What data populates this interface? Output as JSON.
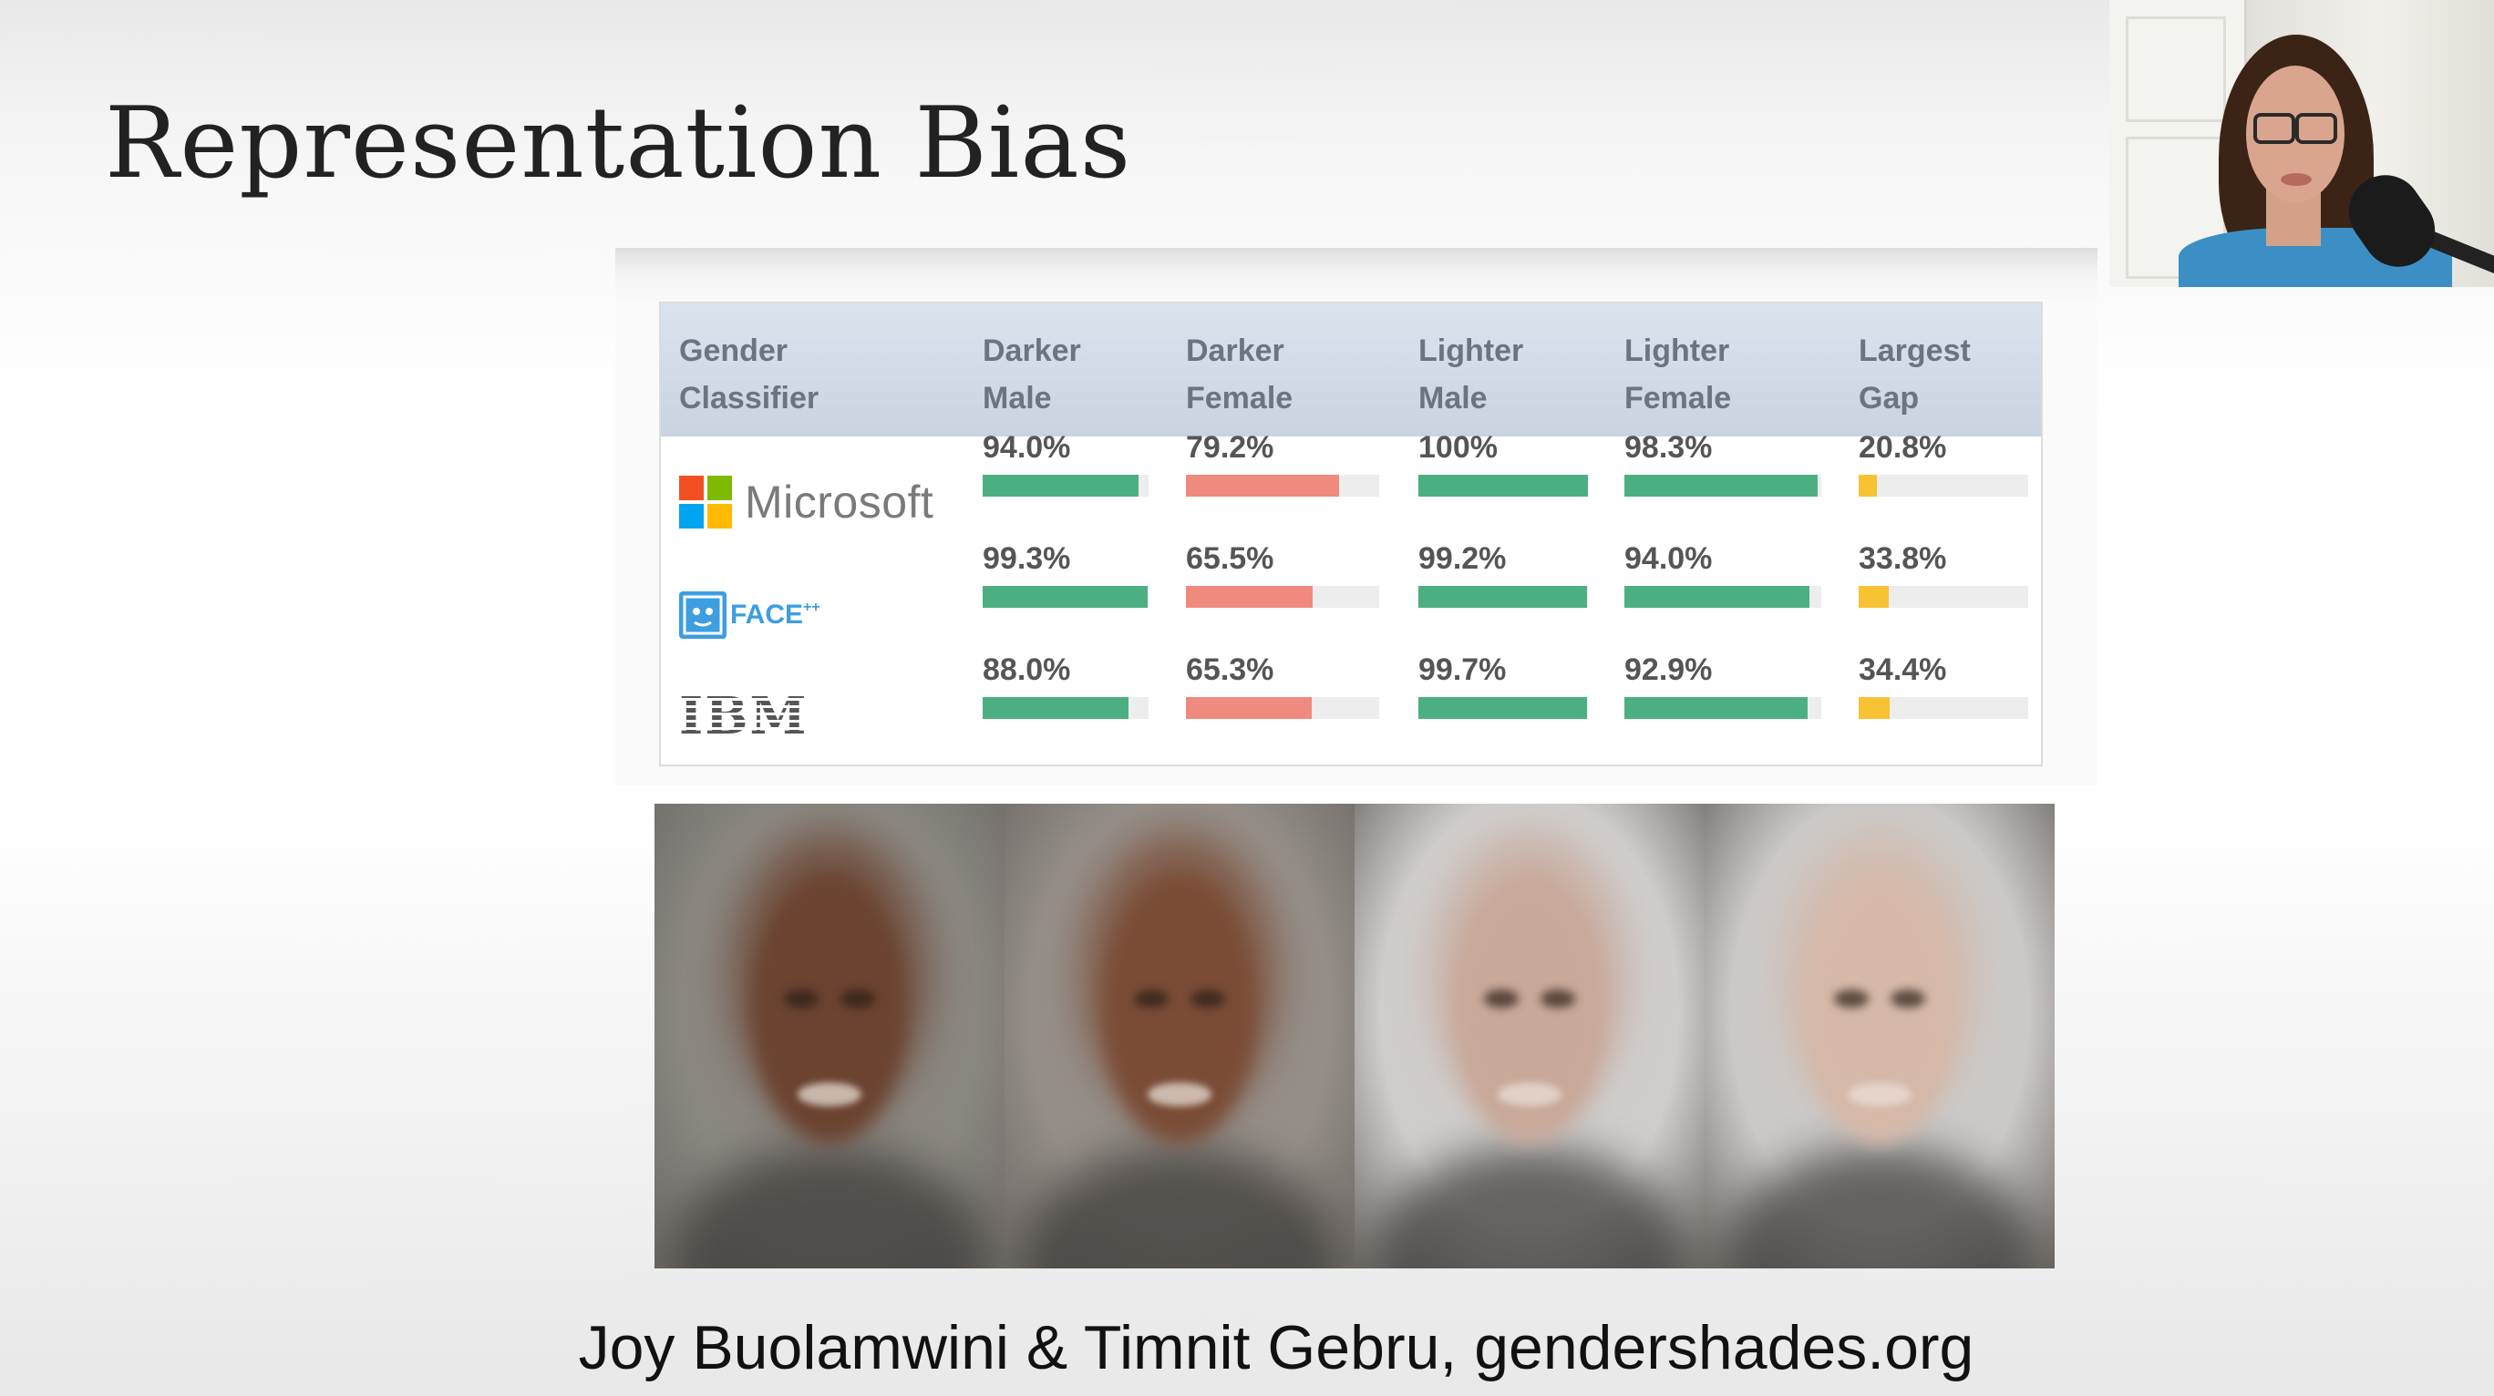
{
  "slide": {
    "title": "Representation Bias",
    "credit": "Joy Buolamwini & Timnit Gebru, gendershades.org"
  },
  "table": {
    "headers": [
      {
        "line1": "Gender",
        "line2": "Classifier"
      },
      {
        "line1": "Darker",
        "line2": "Male"
      },
      {
        "line1": "Darker",
        "line2": "Female"
      },
      {
        "line1": "Lighter",
        "line2": "Male"
      },
      {
        "line1": "Lighter",
        "line2": "Female"
      },
      {
        "line1": "Largest",
        "line2": "Gap"
      }
    ],
    "rows": [
      {
        "classifier": "Microsoft",
        "logo": "microsoft-logo",
        "values": [
          {
            "text": "94.0%",
            "value": 94.0
          },
          {
            "text": "79.2%",
            "value": 79.2
          },
          {
            "text": "100%",
            "value": 100.0
          },
          {
            "text": "98.3%",
            "value": 98.3
          },
          {
            "text": "20.8%",
            "value": 20.8
          }
        ]
      },
      {
        "classifier": "FACE",
        "classifier_sup": "++",
        "logo": "faceplusplus-logo",
        "values": [
          {
            "text": "99.3%",
            "value": 99.3
          },
          {
            "text": "65.5%",
            "value": 65.5
          },
          {
            "text": "99.2%",
            "value": 99.2
          },
          {
            "text": "94.0%",
            "value": 94.0
          },
          {
            "text": "33.8%",
            "value": 33.8
          }
        ]
      },
      {
        "classifier": "IBM",
        "logo": "ibm-logo",
        "values": [
          {
            "text": "88.0%",
            "value": 88.0
          },
          {
            "text": "65.3%",
            "value": 65.3
          },
          {
            "text": "99.7%",
            "value": 99.7
          },
          {
            "text": "92.9%",
            "value": 92.9
          },
          {
            "text": "34.4%",
            "value": 34.4
          }
        ]
      }
    ],
    "colors": {
      "darker_male": "#4caf82",
      "darker_female": "#f08a7e",
      "lighter_male": "#4caf82",
      "lighter_female": "#4caf82",
      "largest_gap": "#f7c233",
      "track": "#ededed"
    },
    "microsoft_colors": [
      "#f25022",
      "#7fba00",
      "#00a4ef",
      "#ffb900"
    ]
  },
  "face_images": [
    {
      "name": "darker-male-average-face",
      "skin": "#6b4330",
      "bg": "#8a8680"
    },
    {
      "name": "darker-female-average-face",
      "skin": "#7a4c36",
      "bg": "#958e88"
    },
    {
      "name": "lighter-male-average-face",
      "skin": "#c8a899",
      "bg": "#cfcdcc"
    },
    {
      "name": "lighter-female-average-face",
      "skin": "#d5b8a8",
      "bg": "#cbc9c8"
    }
  ],
  "webcam": {
    "name": "presenter-webcam-feed"
  }
}
